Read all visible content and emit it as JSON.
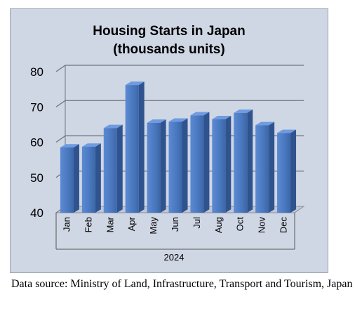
{
  "chart_data": {
    "type": "bar",
    "title": "Housing Starts in Japan",
    "subtitle": "(thousands units)",
    "categories": [
      "Jan",
      "Feb",
      "Mar",
      "Apr",
      "May",
      "Jun",
      "Jul",
      "Aug",
      "Oct",
      "Nov",
      "Dec"
    ],
    "values": [
      58.5,
      58.7,
      64,
      76.2,
      65.5,
      65.8,
      67.6,
      66.5,
      68.3,
      64.8,
      62.6
    ],
    "x_group_label": "2024",
    "ylim": [
      40,
      80
    ],
    "yticks": [
      "40",
      "50",
      "60",
      "70",
      "80"
    ],
    "grid": true,
    "bar_color": "#4e7dc4",
    "legend": "none"
  },
  "caption": {
    "text": "Data source: Ministry of Land, Infrastructure, Transport and Tourism, Japan"
  }
}
